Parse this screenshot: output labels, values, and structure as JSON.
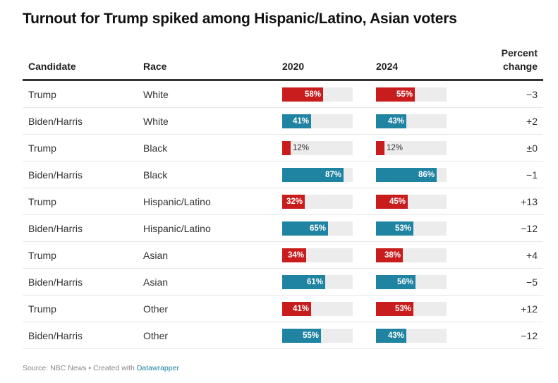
{
  "title": "Turnout for Trump spiked among Hispanic/Latino, Asian voters",
  "columns": {
    "candidate": "Candidate",
    "race": "Race",
    "y2020": "2020",
    "y2024": "2024",
    "change_line1": "Percent",
    "change_line2": "change"
  },
  "colors": {
    "Trump": "#c91d1d",
    "Biden/Harris": "#1f83a2",
    "track": "#ececec"
  },
  "chart_data": {
    "type": "table",
    "title": "Turnout for Trump spiked among Hispanic/Latino, Asian voters",
    "columns": [
      "Candidate",
      "Race",
      "2020",
      "2024",
      "Percent change"
    ],
    "bar_scale_max": 100,
    "rows": [
      {
        "candidate": "Trump",
        "race": "White",
        "v2020": 58,
        "v2024": 55,
        "change": "−3"
      },
      {
        "candidate": "Biden/Harris",
        "race": "White",
        "v2020": 41,
        "v2024": 43,
        "change": "+2"
      },
      {
        "candidate": "Trump",
        "race": "Black",
        "v2020": 12,
        "v2024": 12,
        "change": "±0"
      },
      {
        "candidate": "Biden/Harris",
        "race": "Black",
        "v2020": 87,
        "v2024": 86,
        "change": "−1"
      },
      {
        "candidate": "Trump",
        "race": "Hispanic/Latino",
        "v2020": 32,
        "v2024": 45,
        "change": "+13"
      },
      {
        "candidate": "Biden/Harris",
        "race": "Hispanic/Latino",
        "v2020": 65,
        "v2024": 53,
        "change": "−12"
      },
      {
        "candidate": "Trump",
        "race": "Asian",
        "v2020": 34,
        "v2024": 38,
        "change": "+4"
      },
      {
        "candidate": "Biden/Harris",
        "race": "Asian",
        "v2020": 61,
        "v2024": 56,
        "change": "−5"
      },
      {
        "candidate": "Trump",
        "race": "Other",
        "v2020": 41,
        "v2024": 53,
        "change": "+12"
      },
      {
        "candidate": "Biden/Harris",
        "race": "Other",
        "v2020": 55,
        "v2024": 43,
        "change": "−12"
      }
    ]
  },
  "footer": {
    "source": "Source: NBC News • Created with ",
    "tool": "Datawrapper"
  }
}
